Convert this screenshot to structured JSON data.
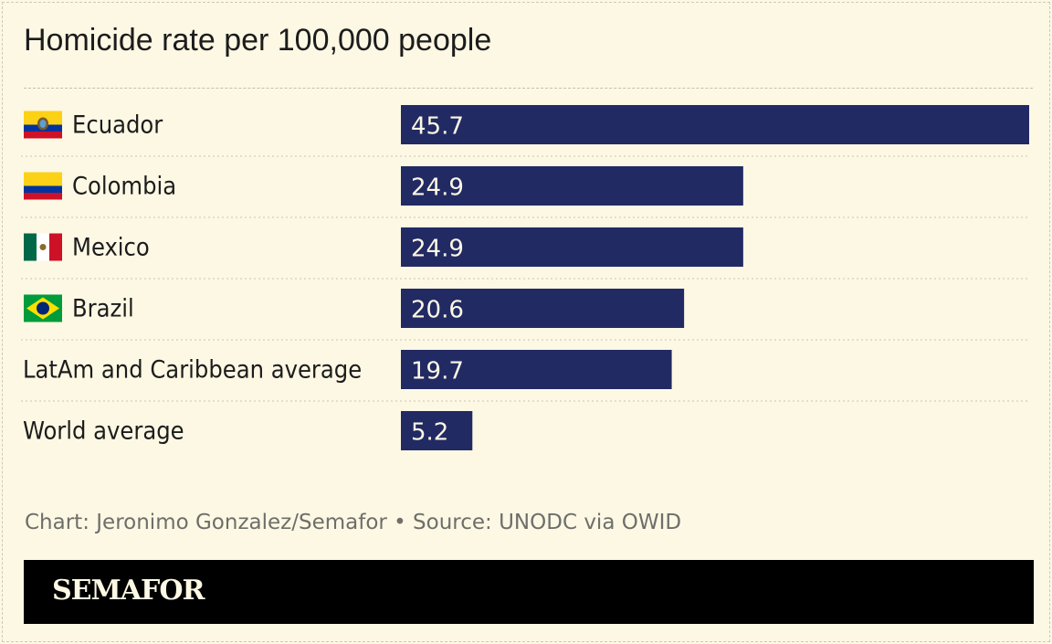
{
  "title": "Homicide rate per 100,000 people",
  "credit": "Chart: Jeronimo Gonzalez/Semafor • Source: UNODC via OWID",
  "brand": "SEMAFOR",
  "colors": {
    "background": "#fdf8e4",
    "bar": "#222a64",
    "bar_label": "#fdf8e4",
    "footer": "#000000"
  },
  "chart_data": {
    "type": "bar",
    "orientation": "horizontal",
    "title": "Homicide rate per 100,000 people",
    "categories": [
      "Ecuador",
      "Colombia",
      "Mexico",
      "Brazil",
      "LatAm and Caribbean average",
      "World average"
    ],
    "values": [
      45.7,
      24.9,
      24.9,
      20.6,
      19.7,
      5.2
    ],
    "labels": [
      "45.7",
      "24.9",
      "24.9",
      "20.6",
      "19.7",
      "5.2"
    ],
    "flags": [
      "ecuador-flag-icon",
      "colombia-flag-icon",
      "mexico-flag-icon",
      "brazil-flag-icon",
      null,
      null
    ],
    "xlim": [
      0,
      45.7
    ],
    "grid": false,
    "legend": "none",
    "xlabel": "",
    "ylabel": ""
  }
}
